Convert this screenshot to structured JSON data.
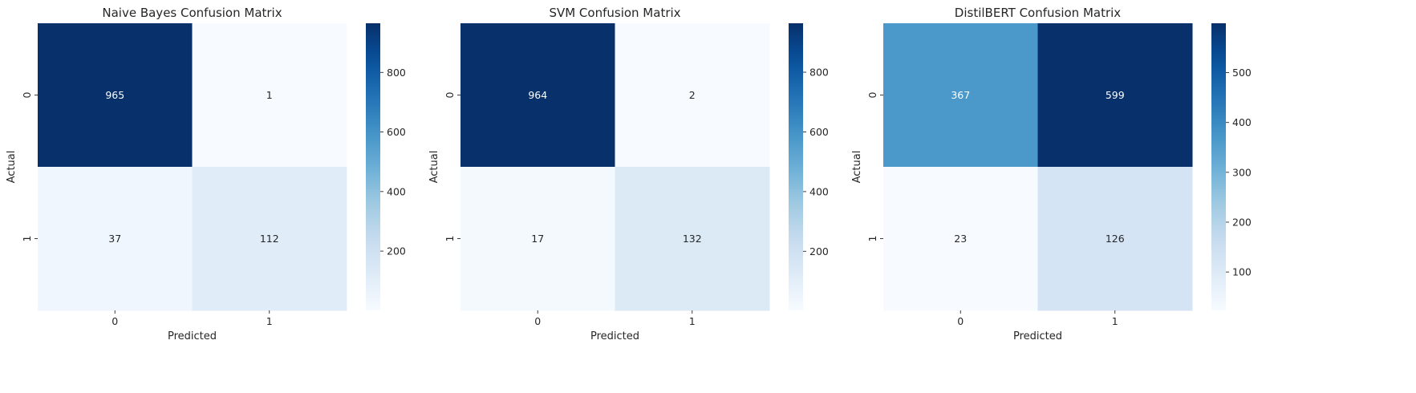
{
  "chart_data": [
    {
      "type": "heatmap",
      "title": "Naive Bayes Confusion Matrix",
      "xlabel": "Predicted",
      "ylabel": "Actual",
      "x_categories": [
        "0",
        "1"
      ],
      "y_categories": [
        "0",
        "1"
      ],
      "values": [
        [
          965,
          1
        ],
        [
          37,
          112
        ]
      ],
      "colormap": "Blues",
      "color_range": [
        1,
        965
      ],
      "colorbar_ticks": [
        200,
        400,
        600,
        800
      ]
    },
    {
      "type": "heatmap",
      "title": "SVM Confusion Matrix",
      "xlabel": "Predicted",
      "ylabel": "Actual",
      "x_categories": [
        "0",
        "1"
      ],
      "y_categories": [
        "0",
        "1"
      ],
      "values": [
        [
          964,
          2
        ],
        [
          17,
          132
        ]
      ],
      "colormap": "Blues",
      "color_range": [
        2,
        964
      ],
      "colorbar_ticks": [
        200,
        400,
        600,
        800
      ]
    },
    {
      "type": "heatmap",
      "title": "DistilBERT Confusion Matrix",
      "xlabel": "Predicted",
      "ylabel": "Actual",
      "x_categories": [
        "0",
        "1"
      ],
      "y_categories": [
        "0",
        "1"
      ],
      "values": [
        [
          367,
          599
        ],
        [
          23,
          126
        ]
      ],
      "colormap": "Blues",
      "color_range": [
        23,
        599
      ],
      "colorbar_ticks": [
        100,
        200,
        300,
        400,
        500
      ]
    }
  ]
}
